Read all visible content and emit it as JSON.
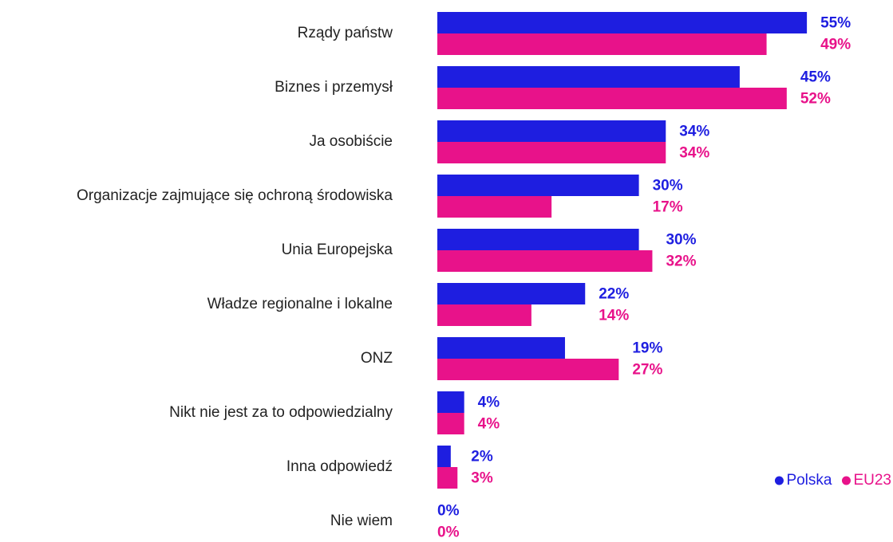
{
  "chart_data": {
    "type": "hbar",
    "categories": [
      "Rządy państw",
      "Biznes i przemysł",
      "Ja osobiście",
      "Organizacje zajmujące się ochroną środowiska",
      "Unia Europejska",
      "Władze regionalne i lokalne",
      "ONZ",
      "Nikt nie jest za to odpowiedzialny",
      "Inna odpowiedź",
      "Nie wiem"
    ],
    "series": [
      {
        "name": "Polska",
        "color": "#1e1ee0",
        "values": [
          55,
          45,
          34,
          30,
          30,
          22,
          19,
          4,
          2,
          0
        ],
        "value_labels": [
          "55%",
          "45%",
          "34%",
          "30%",
          "30%",
          "22%",
          "19%",
          "4%",
          "2%",
          "0%"
        ]
      },
      {
        "name": "EU23",
        "color": "#e8128a",
        "values": [
          49,
          52,
          34,
          17,
          32,
          14,
          27,
          4,
          3,
          0
        ],
        "value_labels": [
          "49%",
          "52%",
          "34%",
          "17%",
          "32%",
          "14%",
          "27%",
          "4%",
          "3%",
          "0%"
        ]
      }
    ],
    "legend": "bottom-right"
  }
}
